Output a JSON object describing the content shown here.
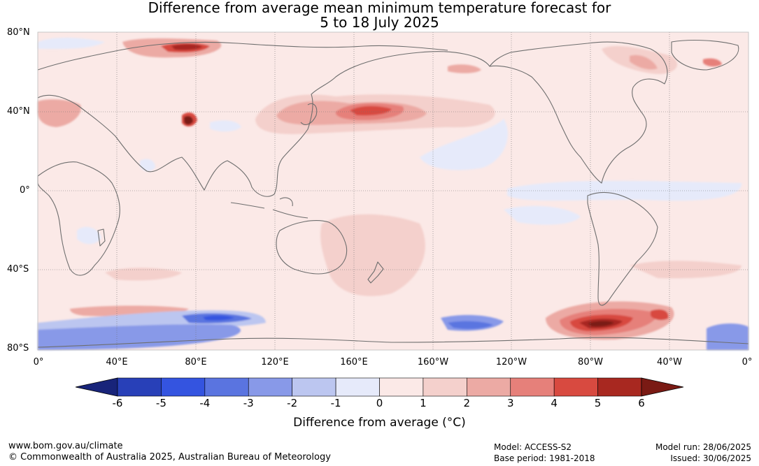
{
  "title": {
    "line1": "Difference from average mean minimum temperature forecast for",
    "line2": "5 to 18 July 2025"
  },
  "map": {
    "lat_labels": [
      "80°N",
      "40°N",
      "0°",
      "40°S",
      "80°S"
    ],
    "lon_labels": [
      "0°",
      "40°E",
      "80°E",
      "120°E",
      "160°E",
      "160°W",
      "120°W",
      "80°W",
      "40°W",
      "0°"
    ],
    "background_color": "#fbe9e7",
    "coast_color": "#6e6e6e"
  },
  "colorbar": {
    "ticks": [
      "-6",
      "-5",
      "-4",
      "-3",
      "-2",
      "-1",
      "0",
      "1",
      "2",
      "3",
      "4",
      "5",
      "6"
    ],
    "colors": [
      "#18247a",
      "#2840b8",
      "#3454e0",
      "#5a74e0",
      "#8899e8",
      "#bcc6f0",
      "#e6eafa",
      "#fbe9e7",
      "#f4d0cc",
      "#ecaaa4",
      "#e6807a",
      "#d84a40",
      "#a82820",
      "#7a1a14"
    ],
    "label": "Difference from average (°C)"
  },
  "footer": {
    "url": "www.bom.gov.au/climate",
    "copyright": "© Commonwealth of Australia 2025, Australian Bureau of Meteorology",
    "model": "Model: ACCESS-S2",
    "base_period": "Base period: 1981-2018",
    "model_run": "Model run: 28/06/2025",
    "issued": "Issued: 30/06/2025"
  }
}
